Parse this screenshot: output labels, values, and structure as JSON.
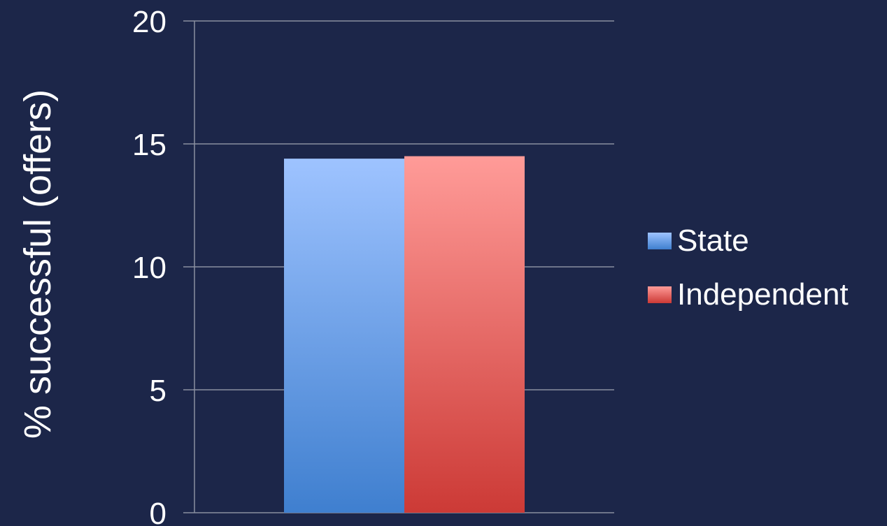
{
  "chart_data": {
    "type": "bar",
    "categories": [
      ""
    ],
    "series": [
      {
        "name": "State",
        "values": [
          14.4
        ]
      },
      {
        "name": "Independent",
        "values": [
          14.5
        ]
      }
    ],
    "title": "",
    "xlabel": "",
    "ylabel": "% successful (offers)",
    "ylim": [
      0,
      20
    ],
    "yticks": [
      0,
      5,
      10,
      15,
      20
    ],
    "grid": true,
    "legend": "right",
    "colors": {
      "State": [
        "#9ec3ff",
        "#3f7fcf"
      ],
      "Independent": [
        "#ff9b98",
        "#cc3a36"
      ],
      "background": "#1c2649",
      "grid": "#8a8fa0"
    }
  }
}
